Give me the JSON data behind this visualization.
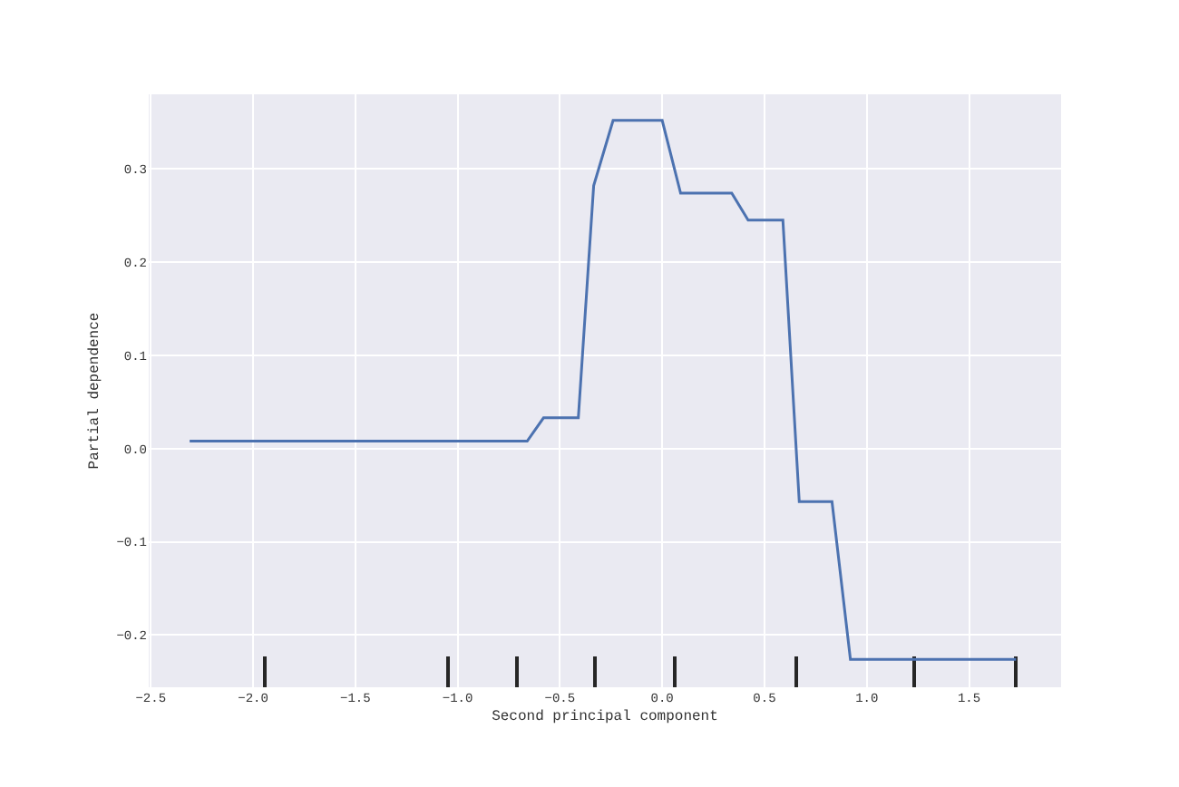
{
  "chart_data": {
    "type": "line",
    "xlabel": "Second principal component",
    "ylabel": "Partial dependence",
    "xlim": [
      -2.51,
      1.95
    ],
    "ylim": [
      -0.256,
      0.38
    ],
    "xticks": [
      {
        "value": -2.5,
        "label": "−2.5"
      },
      {
        "value": -2.0,
        "label": "−2.0"
      },
      {
        "value": -1.5,
        "label": "−1.5"
      },
      {
        "value": -1.0,
        "label": "−1.0"
      },
      {
        "value": -0.5,
        "label": "−0.5"
      },
      {
        "value": 0.0,
        "label": "0.0"
      },
      0.5,
      {
        "value": 1.0,
        "label": "1.0"
      },
      1.5
    ],
    "yticks": [
      {
        "value": -0.2,
        "label": "−0.2"
      },
      {
        "value": -0.1,
        "label": "−0.1"
      },
      {
        "value": 0.0,
        "label": "0.0"
      },
      0.1,
      0.2,
      0.3
    ],
    "grid": true,
    "marker": "none",
    "line_style": "solid",
    "series": [
      {
        "color": "#4c72b0",
        "x": [
          -2.31,
          -0.66,
          -0.58,
          -0.41,
          -0.335,
          -0.24,
          0.0,
          0.09,
          0.34,
          0.42,
          0.59,
          0.67,
          0.83,
          0.92,
          1.73
        ],
        "values": [
          0.008,
          0.008,
          0.033,
          0.033,
          0.282,
          0.352,
          0.352,
          0.274,
          0.274,
          0.245,
          0.245,
          -0.057,
          -0.057,
          -0.226,
          -0.226
        ]
      },
      {
        "type": "bar",
        "color": "#262626",
        "x": [
          -1.94,
          -1.045,
          -0.71,
          -0.33,
          0.06,
          0.66,
          1.23,
          1.73
        ],
        "base": [
          -0.256,
          -0.256,
          -0.256,
          -0.256,
          -0.256,
          -0.256,
          -0.256,
          -0.256
        ],
        "values": [
          0.034,
          0.034,
          0.034,
          0.034,
          0.034,
          0.034,
          0.034,
          0.034
        ]
      }
    ]
  }
}
